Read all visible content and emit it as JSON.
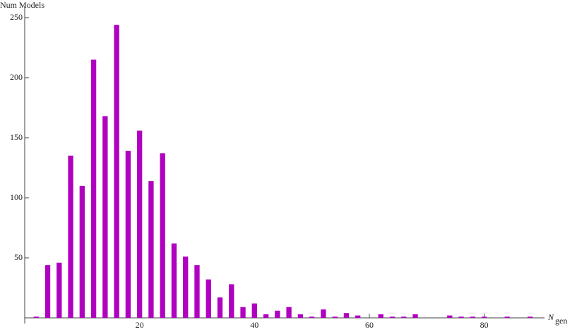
{
  "chart_data": {
    "type": "bar",
    "ylabel": "Num Models",
    "xlabel": "N",
    "xlabel_sub": "gen",
    "x": [
      2,
      4,
      6,
      8,
      10,
      12,
      14,
      16,
      18,
      20,
      22,
      24,
      26,
      28,
      30,
      32,
      34,
      36,
      38,
      40,
      42,
      44,
      46,
      48,
      50,
      52,
      54,
      56,
      58,
      62,
      64,
      66,
      68,
      74,
      76,
      78,
      80,
      84,
      88
    ],
    "values": [
      1,
      44,
      46,
      135,
      110,
      215,
      168,
      244,
      139,
      156,
      114,
      137,
      62,
      51,
      44,
      32,
      17,
      28,
      9,
      12,
      3,
      6,
      9,
      3,
      1,
      7,
      1,
      4,
      2,
      3,
      1,
      1,
      3,
      2,
      1,
      1,
      1,
      1,
      1
    ],
    "color": "#b000c0",
    "bar_width": 1,
    "xlim": [
      0,
      90.5
    ],
    "ylim": [
      0,
      260
    ],
    "xticks": [
      20,
      40,
      60,
      80
    ],
    "yticks": [
      50,
      100,
      150,
      200,
      250
    ]
  }
}
